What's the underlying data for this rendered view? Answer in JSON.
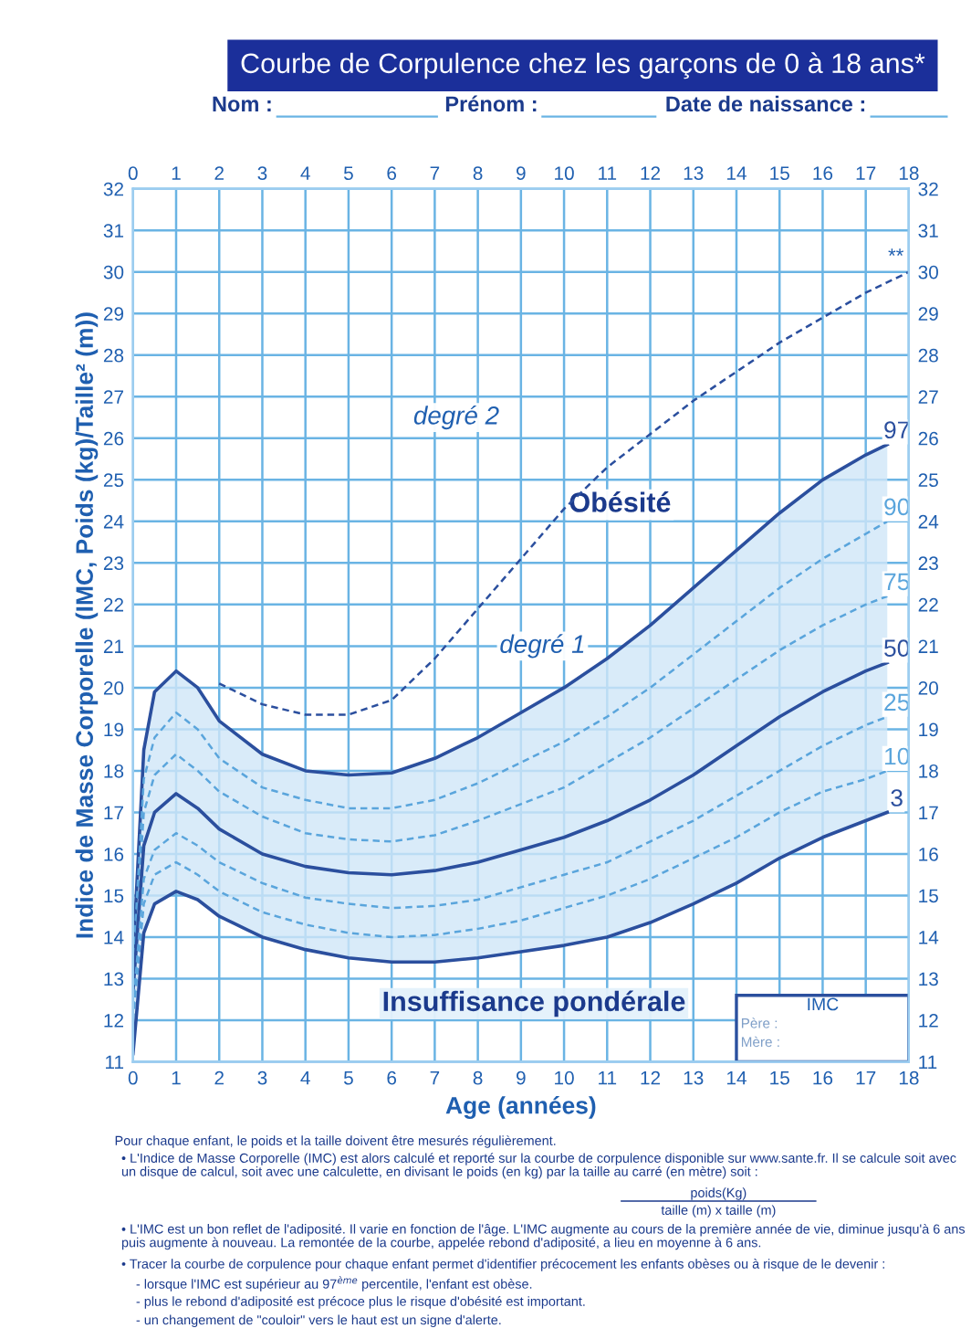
{
  "chart_data": {
    "type": "line",
    "title": "Courbe de Corpulence chez les garçons de 0 à 18 ans*",
    "xlabel": "Age (années)",
    "ylabel": "Indice de Masse Corporelle (IMC, Poids (kg)/Taille² (m))",
    "xlim": [
      0,
      18
    ],
    "xticks": [
      0,
      1,
      2,
      3,
      4,
      5,
      6,
      7,
      8,
      9,
      10,
      11,
      12,
      13,
      14,
      15,
      16,
      17,
      18
    ],
    "x2lim": [
      0,
      18
    ],
    "x2ticks": [
      0,
      1,
      2,
      3,
      4,
      5,
      6,
      7,
      8,
      9,
      10,
      11,
      12,
      13,
      14,
      15,
      16,
      17,
      18
    ],
    "ylim": [
      11,
      32
    ],
    "yticks": [
      11,
      12,
      13,
      14,
      15,
      16,
      17,
      18,
      19,
      20,
      21,
      22,
      23,
      24,
      25,
      26,
      27,
      28,
      29,
      30,
      31,
      32
    ],
    "y2lim": [
      11,
      32
    ],
    "y2ticks": [
      11,
      12,
      13,
      14,
      15,
      16,
      17,
      18,
      19,
      20,
      21,
      22,
      23,
      24,
      25,
      26,
      27,
      28,
      29,
      30,
      31,
      32
    ],
    "grid": true,
    "marker": "none",
    "x": [
      0,
      0.25,
      0.5,
      1,
      1.5,
      2,
      3,
      4,
      5,
      6,
      7,
      8,
      9,
      10,
      11,
      12,
      13,
      14,
      15,
      16,
      17,
      17.5
    ],
    "series": [
      {
        "name": "97",
        "color": "#2b4f9e",
        "line_style": "solid",
        "values": [
          13.5,
          18.5,
          19.9,
          20.4,
          20.0,
          19.2,
          18.4,
          18.0,
          17.9,
          17.95,
          18.3,
          18.8,
          19.4,
          20.0,
          20.7,
          21.5,
          22.4,
          23.3,
          24.2,
          25.0,
          25.6,
          25.85
        ]
      },
      {
        "name": "90",
        "color": "#5aa5dc",
        "line_style": "dashed",
        "values": [
          13.3,
          17.8,
          18.8,
          19.4,
          19.0,
          18.3,
          17.6,
          17.3,
          17.1,
          17.1,
          17.3,
          17.7,
          18.2,
          18.7,
          19.3,
          20.0,
          20.8,
          21.6,
          22.4,
          23.1,
          23.7,
          24.0
        ]
      },
      {
        "name": "75",
        "color": "#5aa5dc",
        "line_style": "dashed",
        "values": [
          13.0,
          17.0,
          17.9,
          18.4,
          18.0,
          17.5,
          16.9,
          16.5,
          16.35,
          16.3,
          16.45,
          16.8,
          17.2,
          17.6,
          18.2,
          18.8,
          19.5,
          20.2,
          20.9,
          21.5,
          22.0,
          22.2
        ]
      },
      {
        "name": "50",
        "color": "#2b4f9e",
        "line_style": "solid",
        "values": [
          12.7,
          16.2,
          17.0,
          17.45,
          17.1,
          16.6,
          16.0,
          15.7,
          15.55,
          15.5,
          15.6,
          15.8,
          16.1,
          16.4,
          16.8,
          17.3,
          17.9,
          18.6,
          19.3,
          19.9,
          20.4,
          20.6
        ],
        "lower": [
          11.2,
          14.1,
          14.8,
          15.1,
          14.9,
          14.5,
          14.0,
          13.7,
          13.5,
          13.4,
          13.4,
          13.5,
          13.65,
          13.8,
          14.0,
          14.35,
          14.8,
          15.3,
          15.9,
          16.4,
          16.8,
          17.0
        ],
        "upper": [
          13.5,
          18.5,
          19.9,
          20.4,
          20.0,
          19.2,
          18.4,
          18.0,
          17.9,
          17.95,
          18.3,
          18.8,
          19.4,
          20.0,
          20.7,
          21.5,
          22.4,
          23.3,
          24.2,
          25.0,
          25.6,
          25.85
        ]
      },
      {
        "name": "25",
        "color": "#5aa5dc",
        "line_style": "dashed",
        "values": [
          12.3,
          15.4,
          16.1,
          16.5,
          16.2,
          15.8,
          15.3,
          14.95,
          14.8,
          14.7,
          14.75,
          14.9,
          15.2,
          15.5,
          15.8,
          16.3,
          16.8,
          17.4,
          18.0,
          18.6,
          19.1,
          19.3
        ]
      },
      {
        "name": "10",
        "color": "#5aa5dc",
        "line_style": "dashed",
        "values": [
          12.0,
          14.8,
          15.5,
          15.8,
          15.5,
          15.1,
          14.6,
          14.3,
          14.1,
          14.0,
          14.05,
          14.2,
          14.4,
          14.7,
          15.0,
          15.4,
          15.9,
          16.4,
          17.0,
          17.5,
          17.8,
          18.0
        ]
      },
      {
        "name": "3",
        "color": "#2b4f9e",
        "line_style": "solid",
        "values": [
          11.2,
          14.1,
          14.8,
          15.1,
          14.9,
          14.5,
          14.0,
          13.7,
          13.5,
          13.4,
          13.4,
          13.5,
          13.65,
          13.8,
          14.0,
          14.35,
          14.8,
          15.3,
          15.9,
          16.4,
          16.8,
          17.0
        ]
      },
      {
        "color": "#2b4f9e",
        "line_style": "dashed",
        "x": [
          2,
          3,
          4,
          5,
          6,
          7,
          8,
          9,
          10,
          11,
          12,
          13,
          14,
          15,
          16,
          17,
          18
        ],
        "values": [
          20.1,
          19.6,
          19.35,
          19.35,
          19.7,
          20.7,
          21.9,
          23.1,
          24.3,
          25.3,
          26.1,
          26.9,
          27.6,
          28.3,
          28.9,
          29.5,
          30.0
        ]
      }
    ],
    "annotations": [
      "degré 2",
      "Obésité",
      "degré 1",
      "Insuffisance pondérale",
      {
        "text": "**",
        "x": 18,
        "y": 30
      },
      "Nom :",
      "Prénom :",
      "Date de naissance :",
      "IMC",
      "Père :",
      "Mère :",
      "Pour chaque enfant, le poids et la taille doivent être mesurés régulièrement.",
      "• L'Indice de Masse Corporelle (IMC) est alors calculé et reporté sur la courbe de corpulence disponible sur www.sante.fr. Il se calcule soit avec un disque de calcul, soit avec une calculette, en divisant le poids (en kg) par la taille au carré (en mètre) soit :",
      "poids(Kg)",
      "taille (m) x taille (m)",
      "• L'IMC est un bon reflet de l'adiposité. Il varie en fonction de l'âge. L'IMC augmente au cours de la première année de vie, diminue jusqu'à 6 ans puis augmente à nouveau. La remontée de la courbe, appelée rebond d'adiposité, a lieu en moyenne à 6 ans.",
      "• Tracer la courbe de corpulence pour chaque enfant permet d'identifier précocement les enfants obèses ou à risque de le devenir :",
      "- lorsque l'IMC est supérieur au 97$^{ème}$ percentile, l'enfant est obèse.",
      "- plus le rebond d'adiposité est précoce plus le risque d'obésité est important.",
      "- un changement de \"couloir\" vers le haut est un signe d'alerte."
    ]
  }
}
